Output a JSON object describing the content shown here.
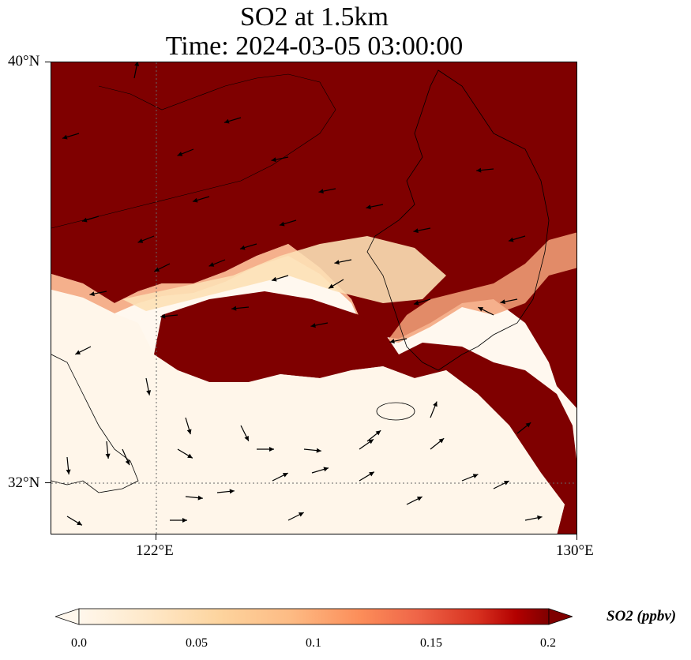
{
  "title": {
    "line1": "SO2 at 1.5km",
    "line2": "Time: 2024-03-05 03:00:00"
  },
  "axes": {
    "lat_ticks": [
      "40°N",
      "32°N"
    ],
    "lon_ticks": [
      "122°E",
      "130°E"
    ],
    "extent": {
      "lon_min": 120,
      "lon_max": 130,
      "lat_min": 31,
      "lat_max": 40
    }
  },
  "colorbar": {
    "label": "SO2 (ppbv)",
    "tick_labels": [
      "0.0",
      "0.05",
      "0.1",
      "0.15",
      "0.2"
    ],
    "ticks": [
      0.0,
      0.05,
      0.1,
      0.15,
      0.2
    ],
    "range": [
      0.0,
      0.2
    ],
    "colormap": "OrRd",
    "extend": "both"
  },
  "field": {
    "description_visible": "high SO2 (>=0.2) over northern region and eastern coast; low (~0) over southwest sea",
    "high_color": "#7f0000",
    "low_color": "#fff7ec"
  },
  "gridlines": {
    "style": "dotted",
    "lon": [
      122
    ],
    "lat": [
      32
    ]
  }
}
